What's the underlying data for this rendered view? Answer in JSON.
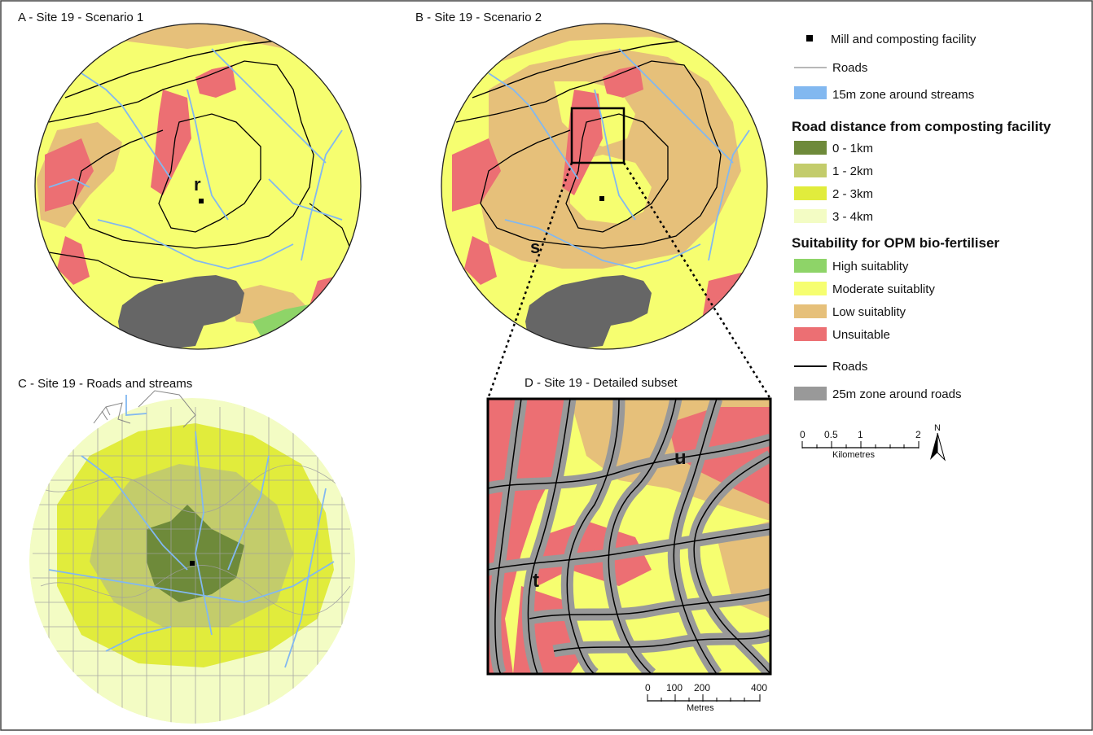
{
  "panels": {
    "a": {
      "title": "A - Site 19 - Scenario 1",
      "label": "r"
    },
    "b": {
      "title": "B -  Site 19 - Scenario 2",
      "label": "s"
    },
    "c": {
      "title": "C - Site 19 - Roads and streams"
    },
    "d": {
      "title": "D - Site 19 - Detailed subset",
      "labels": [
        "t",
        "u"
      ],
      "scale": {
        "ticks": [
          "0",
          "100",
          "200",
          "400"
        ],
        "unit": "Metres"
      }
    }
  },
  "legend": {
    "top_items": [
      {
        "label": "Mill and composting facility",
        "symbol": "square",
        "color": "#000000"
      },
      {
        "label": "Roads",
        "symbol": "line",
        "color": "#a0a0a0"
      },
      {
        "label": "15m zone around streams",
        "symbol": "box",
        "color": "#82b8f0"
      }
    ],
    "distance": {
      "heading": "Road distance from composting facility",
      "items": [
        {
          "label": "0 - 1km",
          "color": "#6e8a3a"
        },
        {
          "label": "1 - 2km",
          "color": "#c3cc6b"
        },
        {
          "label": "2 - 3km",
          "color": "#e1ec3c"
        },
        {
          "label": "3 - 4km",
          "color": "#f3fcc4"
        }
      ]
    },
    "suitability": {
      "heading": "Suitability for OPM bio-fertiliser",
      "items": [
        {
          "label": "High suitablity",
          "color": "#8ed468"
        },
        {
          "label": "Moderate suitablity",
          "color": "#f6fe70"
        },
        {
          "label": "Low suitablity",
          "color": "#e6c07a"
        },
        {
          "label": "Unsuitable",
          "color": "#ec6f73"
        }
      ]
    },
    "bottom_items": [
      {
        "label": "Roads",
        "symbol": "line",
        "color": "#000000"
      },
      {
        "label": "25m zone around roads",
        "symbol": "box",
        "color": "#999999"
      }
    ],
    "scale": {
      "ticks": [
        "0",
        "0.5",
        "1",
        "2"
      ],
      "unit": "Kilometres",
      "north": "N"
    }
  }
}
